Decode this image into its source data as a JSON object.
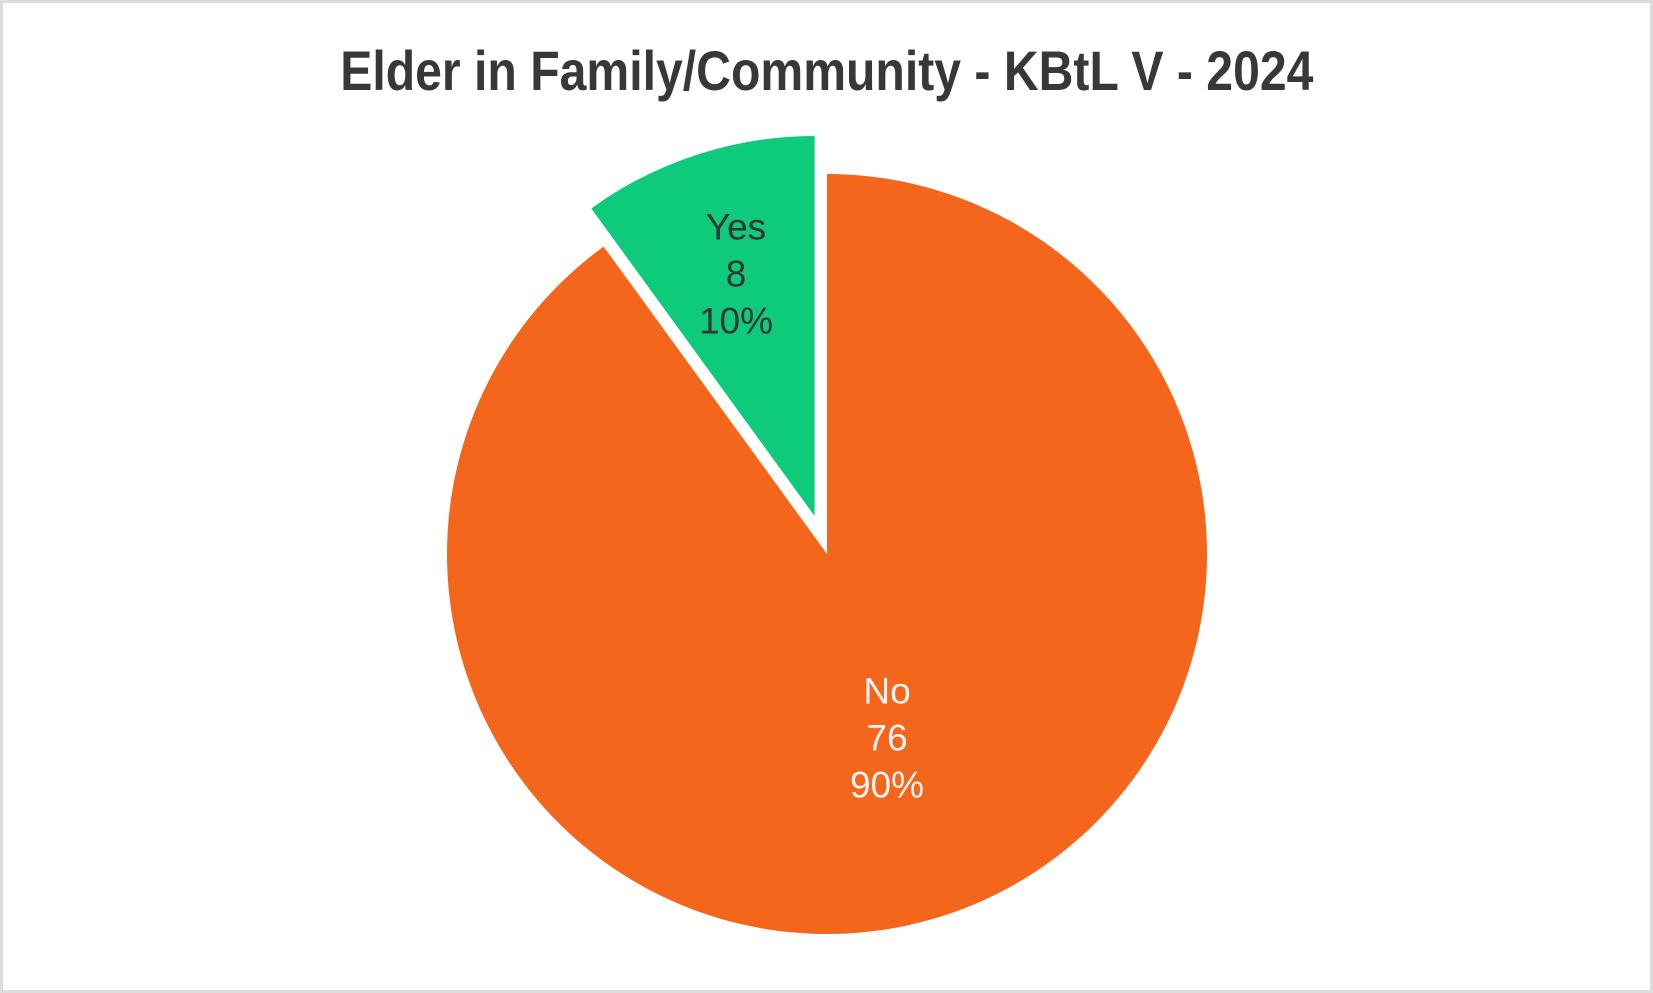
{
  "title": "Elder in Family/Community - KBtL V - 2024",
  "colors": {
    "background": "#FFFFFF",
    "frame_border": "#DCDCDC",
    "title_text": "#383838",
    "yes_slice": "#0ECA7B",
    "no_slice": "#F4661B",
    "label_on_green": "#353535",
    "label_on_orange": "#F8F5F2"
  },
  "chart_data": {
    "type": "pie",
    "title": "Elder in Family/Community - KBtL V - 2024",
    "categories": [
      "Yes",
      "No"
    ],
    "values": [
      8,
      76
    ],
    "legend": "none",
    "start_angle_deg": -36,
    "slices": [
      {
        "label": "Yes",
        "value": 8,
        "pct": 10,
        "pct_label": "10%",
        "color": "#0ECA7B",
        "text_color": "#353535",
        "exploded": true
      },
      {
        "label": "No",
        "value": 76,
        "pct": 90,
        "pct_label": "90%",
        "color": "#F4661B",
        "text_color": "#F8F5F2",
        "exploded": false
      }
    ]
  }
}
